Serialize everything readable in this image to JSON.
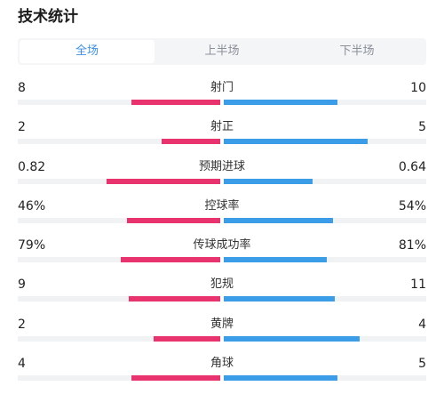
{
  "header": {
    "title": "技术统计"
  },
  "tabs": [
    {
      "label": "全场",
      "active": true
    },
    {
      "label": "上半场",
      "active": false
    },
    {
      "label": "下半场",
      "active": false
    }
  ],
  "colors": {
    "home": "#e8336e",
    "away": "#3b9ce8",
    "tab_active": "#3d8fe6"
  },
  "stats": [
    {
      "label": "射门",
      "left": "8",
      "right": "10",
      "left_fill": 0.44,
      "right_fill": 0.56
    },
    {
      "label": "射正",
      "left": "2",
      "right": "5",
      "left_fill": 0.29,
      "right_fill": 0.71
    },
    {
      "label": "预期进球",
      "left": "0.82",
      "right": "0.64",
      "left_fill": 0.56,
      "right_fill": 0.44
    },
    {
      "label": "控球率",
      "left": "46%",
      "right": "54%",
      "left_fill": 0.46,
      "right_fill": 0.54
    },
    {
      "label": "传球成功率",
      "left": "79%",
      "right": "81%",
      "left_fill": 0.49,
      "right_fill": 0.51
    },
    {
      "label": "犯规",
      "left": "9",
      "right": "11",
      "left_fill": 0.45,
      "right_fill": 0.55
    },
    {
      "label": "黄牌",
      "left": "2",
      "right": "4",
      "left_fill": 0.33,
      "right_fill": 0.67
    },
    {
      "label": "角球",
      "left": "4",
      "right": "5",
      "left_fill": 0.44,
      "right_fill": 0.56
    }
  ]
}
